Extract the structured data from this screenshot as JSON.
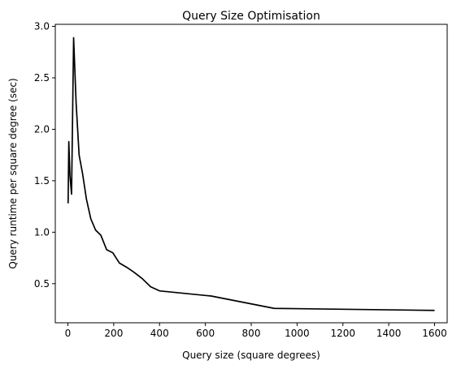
{
  "chart_data": {
    "type": "line",
    "title": "Query Size Optimisation",
    "xlabel": "Query size (square degrees)",
    "ylabel": "Query runtime per square degree (sec)",
    "xlim": [
      -55,
      1655
    ],
    "ylim": [
      0.12,
      3.02
    ],
    "xticks": [
      0,
      200,
      400,
      600,
      800,
      1000,
      1200,
      1400,
      1600
    ],
    "yticks": [
      0.5,
      1.0,
      1.5,
      2.0,
      2.5,
      3.0
    ],
    "xtick_labels": [
      "0",
      "200",
      "400",
      "600",
      "800",
      "1000",
      "1200",
      "1400",
      "1600"
    ],
    "ytick_labels": [
      "0.5",
      "1.0",
      "1.5",
      "2.0",
      "2.5",
      "3.0"
    ],
    "grid": false,
    "series": [
      {
        "color": "#000000",
        "x": [
          1,
          4,
          9,
          16,
          25,
          36,
          49,
          64,
          81,
          100,
          121,
          144,
          169,
          196,
          225,
          256,
          289,
          324,
          361,
          400,
          625,
          900,
          1600
        ],
        "y": [
          1.28,
          1.88,
          1.55,
          1.37,
          2.89,
          2.25,
          1.75,
          1.57,
          1.32,
          1.13,
          1.02,
          0.97,
          0.83,
          0.8,
          0.7,
          0.66,
          0.61,
          0.55,
          0.47,
          0.43,
          0.38,
          0.26,
          0.24
        ]
      }
    ]
  }
}
